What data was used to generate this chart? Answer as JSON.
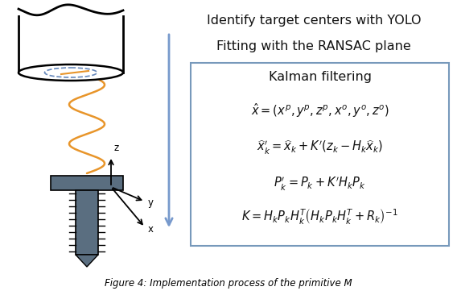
{
  "background_color": "#ffffff",
  "text_identify": "Identify target centers with YOLO",
  "text_fitting": "Fitting with the RANSAC plane",
  "text_kalman_title": "Kalman filtering",
  "eq1": "$\\hat{x} = (x^p, y^p, z^p, x^o, y^o, z^o)$",
  "eq2": "$\\widehat{x}_k^{\\prime} = \\widehat{x}_k + K^{\\prime}(z_k - H_k\\widehat{x}_k)$",
  "eq3": "$P_k^{\\prime} = P_k + K^{\\prime}H_kP_k$",
  "eq4": "$K = H_kP_kH_k^T\\left(H_kP_kH_k^T + R_k\\right)^{-1}$",
  "box_border_color": "#7799bb",
  "arrow_color": "#7799cc",
  "wave_color": "#e8952a",
  "text_color": "#111111",
  "eq_color": "#111111",
  "bolt_color": "#5a6e80",
  "title_fontsize": 11.5,
  "eq_fontsize": 10.5,
  "caption_text": "Figure 4: Implementation process of the primitive M"
}
